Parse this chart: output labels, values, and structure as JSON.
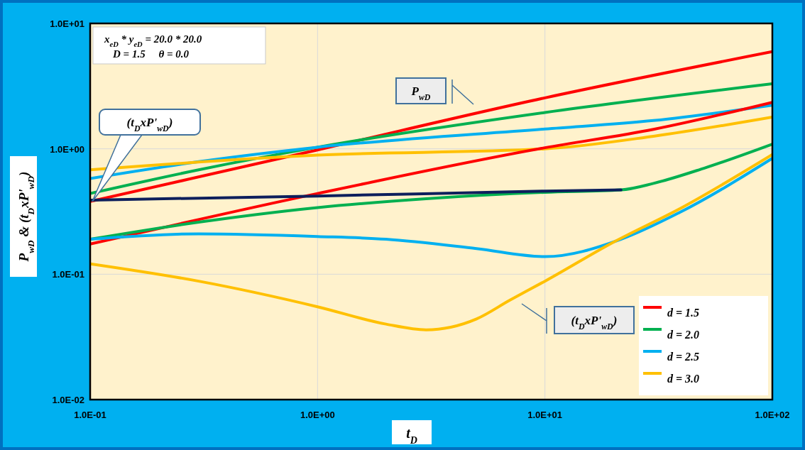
{
  "chart_data": {
    "type": "line",
    "xlabel": "t$_{D}$",
    "ylabel": "P$_{wD}$ & (t$_{D}$xP'$_{wD}$)",
    "log": "xy",
    "grid": true,
    "legend": "bottom right",
    "marker": "none",
    "line_style": "solid",
    "xlim": [
      0.1,
      100
    ],
    "ylim": [
      0.01,
      10
    ],
    "xticks": [
      {
        "value": 0.1,
        "label": "1.0E-01"
      },
      {
        "value": 1,
        "label": "1.0E+00"
      },
      {
        "value": 10,
        "label": "1.0E+01"
      },
      {
        "value": 100,
        "label": "1.0E+02"
      }
    ],
    "yticks": [
      {
        "value": 0.01,
        "label": "1.0E-02"
      },
      {
        "value": 0.1,
        "label": "1.0E-01"
      },
      {
        "value": 1,
        "label": "1.0E+00"
      },
      {
        "value": 10,
        "label": "1.0E+01"
      }
    ],
    "annotations": [
      "x$_{eD}$ * y$_{eD}$ = 20.0 * 20.0",
      "D = 1.5     θ = 0.0",
      "P$_{wD}$",
      "(t$_{D}$xP'$_{wD}$)",
      "(t$_{D}$xP'$_{wD}$)"
    ],
    "series": [
      {
        "name": "d = 1.5",
        "color": "#ff0000",
        "x": [
          0.1,
          1,
          10,
          100
        ],
        "values": [
          0.38,
          0.98,
          2.55,
          5.95
        ]
      },
      {
        "name": "d = 2.0",
        "color": "#00b050",
        "x": [
          0.1,
          0.3,
          1,
          10,
          100
        ],
        "values": [
          0.44,
          0.68,
          1.03,
          1.95,
          3.3
        ]
      },
      {
        "name": "d = 2.5",
        "color": "#00b0f0",
        "x": [
          0.1,
          0.3,
          1,
          10,
          30,
          100
        ],
        "values": [
          0.58,
          0.79,
          1.03,
          1.44,
          1.68,
          2.23
        ]
      },
      {
        "name": "d = 3.0",
        "color": "#ffc000",
        "x": [
          0.1,
          1,
          10,
          30,
          100
        ],
        "values": [
          0.68,
          0.89,
          1.0,
          1.26,
          1.79
        ]
      },
      {
        "color": "#ff0000",
        "x": [
          0.1,
          1,
          10,
          30,
          100
        ],
        "values": [
          0.174,
          0.44,
          1.02,
          1.43,
          2.35
        ]
      },
      {
        "color": "#00b050",
        "x": [
          0.1,
          0.3,
          1,
          3,
          10,
          21.6,
          30,
          50,
          100
        ],
        "values": [
          0.19,
          0.26,
          0.34,
          0.4,
          0.45,
          0.47,
          0.53,
          0.7,
          1.09
        ]
      },
      {
        "color": "#00b0f0",
        "x": [
          0.1,
          0.3,
          1,
          2,
          5,
          10,
          21.6,
          39,
          100
        ],
        "values": [
          0.19,
          0.21,
          0.2,
          0.19,
          0.16,
          0.138,
          0.19,
          0.31,
          0.84
        ]
      },
      {
        "color": "#ffc000",
        "x": [
          0.1,
          0.3,
          1,
          2,
          3,
          5,
          7,
          10,
          20,
          40,
          100
        ],
        "values": [
          0.121,
          0.088,
          0.055,
          0.04,
          0.036,
          0.044,
          0.062,
          0.088,
          0.18,
          0.34,
          0.9
        ]
      },
      {
        "color": "#0d1f5c",
        "x": [
          0.1,
          1,
          10,
          21.6
        ],
        "values": [
          0.39,
          0.42,
          0.46,
          0.47
        ]
      }
    ]
  }
}
